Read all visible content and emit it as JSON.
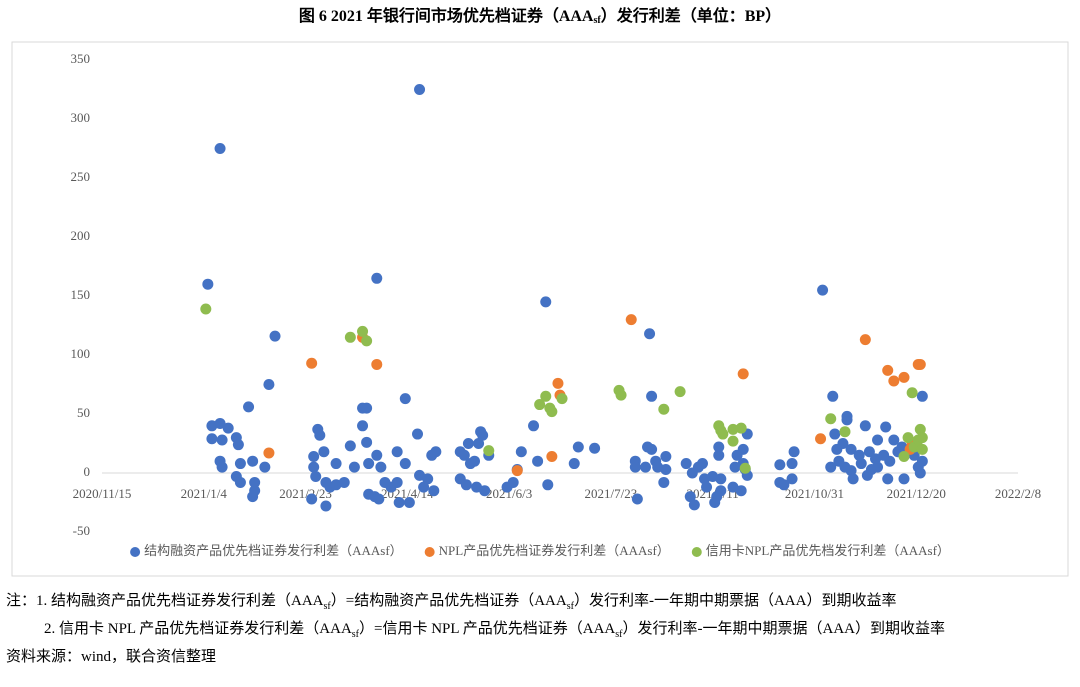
{
  "chart_data": {
    "type": "scatter",
    "title_parts": [
      "图 6   2021 年银行间市场优先档证券（AAA",
      "sf",
      "）发行利差（单位：BP）"
    ],
    "xlim": [
      "2020/11/15",
      "2022/2/8"
    ],
    "xticks": [
      "2020/11/15",
      "2021/1/4",
      "2021/2/23",
      "2021/4/14",
      "2021/6/3",
      "2021/7/23",
      "2021/9/11",
      "2021/10/31",
      "2021/12/20",
      "2022/2/8"
    ],
    "ylim": [
      -50,
      350
    ],
    "yticks": [
      -50,
      0,
      50,
      100,
      150,
      200,
      250,
      300,
      350
    ],
    "grid": false,
    "legend": "bottom",
    "series": [
      {
        "name": "结构融资产品优先档证券发行利差（AAAsf）",
        "color": "#4472c4",
        "x": [
          "2021/1/6",
          "2021/1/12",
          "2021/1/8",
          "2021/1/8",
          "2021/1/12",
          "2021/1/13",
          "2021/1/16",
          "2021/1/12",
          "2021/1/13",
          "2021/1/20",
          "2021/1/21",
          "2021/1/22",
          "2021/1/20",
          "2021/1/22",
          "2021/1/26",
          "2021/1/28",
          "2021/1/29",
          "2021/1/29",
          "2021/1/28",
          "2021/2/3",
          "2021/2/5",
          "2021/2/8",
          "2021/2/27",
          "2021/2/27",
          "2021/2/28",
          "2021/2/26",
          "2021/3/1",
          "2021/3/2",
          "2021/3/4",
          "2021/3/5",
          "2021/3/5",
          "2021/3/7",
          "2021/3/10",
          "2021/3/10",
          "2021/3/14",
          "2021/3/17",
          "2021/3/19",
          "2021/3/23",
          "2021/3/23",
          "2021/3/25",
          "2021/3/25",
          "2021/3/26",
          "2021/3/26",
          "2021/3/29",
          "2021/3/30",
          "2021/3/30",
          "2021/3/31",
          "2021/4/1",
          "2021/4/3",
          "2021/4/6",
          "2021/4/9",
          "2021/4/9",
          "2021/4/10",
          "2021/4/13",
          "2021/4/13",
          "2021/4/15",
          "2021/4/19",
          "2021/4/20",
          "2021/4/20",
          "2021/4/22",
          "2021/4/24",
          "2021/4/26",
          "2021/4/27",
          "2021/4/28",
          "2021/5/10",
          "2021/5/10",
          "2021/5/12",
          "2021/5/13",
          "2021/5/14",
          "2021/5/15",
          "2021/5/17",
          "2021/5/18",
          "2021/5/19",
          "2021/5/20",
          "2021/5/21",
          "2021/5/22",
          "2021/5/24",
          "2021/6/2",
          "2021/6/5",
          "2021/6/7",
          "2021/6/9",
          "2021/6/15",
          "2021/6/17",
          "2021/6/21",
          "2021/6/22",
          "2021/7/5",
          "2021/7/7",
          "2021/7/15",
          "2021/8/4",
          "2021/8/4",
          "2021/8/5",
          "2021/8/9",
          "2021/8/10",
          "2021/8/11",
          "2021/8/12",
          "2021/8/12",
          "2021/8/14",
          "2021/8/15",
          "2021/8/18",
          "2021/8/19",
          "2021/8/19",
          "2021/8/29",
          "2021/8/31",
          "2021/9/2",
          "2021/9/1",
          "2021/9/4",
          "2021/9/6",
          "2021/9/7",
          "2021/9/8",
          "2021/9/11",
          "2021/9/12",
          "2021/9/13",
          "2021/9/14",
          "2021/9/14",
          "2021/9/15",
          "2021/9/15",
          "2021/9/21",
          "2021/9/22",
          "2021/9/23",
          "2021/9/25",
          "2021/9/26",
          "2021/9/26",
          "2021/9/27",
          "2021/9/28",
          "2021/9/28",
          "2021/10/14",
          "2021/10/14",
          "2021/10/16",
          "2021/10/20",
          "2021/10/20",
          "2021/10/21",
          "2021/11/4",
          "2021/11/8",
          "2021/11/9",
          "2021/11/10",
          "2021/11/11",
          "2021/11/12",
          "2021/11/14",
          "2021/11/15",
          "2021/11/16",
          "2021/11/16",
          "2021/11/18",
          "2021/11/18",
          "2021/11/19",
          "2021/11/22",
          "2021/11/23",
          "2021/11/25",
          "2021/11/26",
          "2021/11/27",
          "2021/11/28",
          "2021/11/30",
          "2021/12/1",
          "2021/12/1",
          "2021/12/4",
          "2021/12/5",
          "2021/12/6",
          "2021/12/7",
          "2021/12/9",
          "2021/12/11",
          "2021/12/13",
          "2021/12/14",
          "2021/12/14",
          "2021/12/18",
          "2021/12/19",
          "2021/12/21",
          "2021/12/22",
          "2021/12/23",
          "2021/12/23"
        ],
        "values": [
          160,
          275,
          40,
          29,
          42,
          28,
          38,
          10,
          5,
          30,
          24,
          8,
          -3,
          -8,
          56,
          10,
          -8,
          -15,
          -20,
          5,
          75,
          116,
          14,
          5,
          -3,
          -22,
          37,
          32,
          18,
          -8,
          -28,
          -12,
          8,
          -10,
          -8,
          23,
          5,
          55,
          40,
          55,
          26,
          8,
          -18,
          -20,
          165,
          15,
          -22,
          5,
          -8,
          -12,
          18,
          -8,
          -25,
          63,
          8,
          -25,
          33,
          325,
          -2,
          -12,
          -5,
          15,
          -15,
          18,
          18,
          -5,
          15,
          -10,
          25,
          8,
          10,
          -12,
          25,
          35,
          32,
          -15,
          15,
          -12,
          -8,
          3,
          18,
          40,
          10,
          145,
          -10,
          8,
          22,
          21,
          10,
          5,
          -22,
          5,
          22,
          118,
          20,
          65,
          10,
          5,
          -8,
          3,
          14,
          8,
          -20,
          -27,
          0,
          5,
          8,
          -5,
          -12,
          -3,
          -25,
          -20,
          22,
          15,
          -15,
          -5,
          -12,
          5,
          15,
          -15,
          20,
          8,
          3,
          -2,
          33,
          7,
          -8,
          -10,
          8,
          -5,
          18,
          155,
          5,
          65,
          33,
          20,
          10,
          25,
          5,
          45,
          48,
          20,
          2,
          -5,
          15,
          8,
          40,
          -2,
          18,
          3,
          12,
          28,
          5,
          15,
          39,
          -5,
          10,
          28,
          18,
          22,
          15,
          -5,
          20,
          15,
          5,
          0,
          65,
          10
        ]
      },
      {
        "name": "NPL产品优先档证券发行利差（AAAsf）",
        "color": "#ed7d31",
        "x": [
          "2021/2/5",
          "2021/2/26",
          "2021/3/23",
          "2021/3/30",
          "2021/6/7",
          "2021/6/24",
          "2021/6/27",
          "2021/6/28",
          "2021/8/2",
          "2021/9/26",
          "2021/11/3",
          "2021/11/25",
          "2021/12/6",
          "2021/12/9",
          "2021/12/14",
          "2021/12/17",
          "2021/12/18",
          "2021/12/21",
          "2021/12/22"
        ],
        "values": [
          17,
          93,
          115,
          92,
          2,
          14,
          76,
          66,
          130,
          84,
          29,
          113,
          87,
          78,
          81,
          20,
          25,
          92,
          92
        ]
      },
      {
        "name": "信用卡NPL产品优先档发行利差（AAAsf）",
        "color": "#8fbc4f",
        "x": [
          "2021/1/5",
          "2021/3/17",
          "2021/3/23",
          "2021/3/25",
          "2021/5/24",
          "2021/6/18",
          "2021/6/21",
          "2021/6/23",
          "2021/6/24",
          "2021/6/29",
          "2021/7/27",
          "2021/7/28",
          "2021/8/18",
          "2021/8/26",
          "2021/9/14",
          "2021/9/15",
          "2021/9/16",
          "2021/9/21",
          "2021/9/21",
          "2021/9/25",
          "2021/9/27",
          "2021/11/8",
          "2021/11/15",
          "2021/12/14",
          "2021/12/16",
          "2021/12/18",
          "2021/12/19",
          "2021/12/21",
          "2021/12/22",
          "2021/12/23",
          "2021/12/23"
        ],
        "values": [
          139,
          115,
          120,
          112,
          19,
          58,
          65,
          55,
          52,
          63,
          70,
          66,
          54,
          69,
          40,
          36,
          33,
          37,
          27,
          38,
          4,
          46,
          35,
          14,
          30,
          68,
          22,
          28,
          37,
          30,
          20
        ]
      }
    ]
  },
  "notes": {
    "label": "注：",
    "items": [
      [
        "1. 结构融资产品优先档证券发行利差（AAA",
        "sf",
        "）=结构融资产品优先档证券（AAA",
        "sf",
        "）发行利率-一年期中期票据（AAA）到期收益率"
      ],
      [
        "2. 信用卡 NPL 产品优先档证券发行利差（AAA",
        "sf",
        "）=信用卡 NPL 产品优先档证券（AAA",
        "sf",
        "）发行利率-一年期中期票据（AAA）到期收益率"
      ]
    ]
  },
  "source": "资料来源：wind，联合资信整理"
}
